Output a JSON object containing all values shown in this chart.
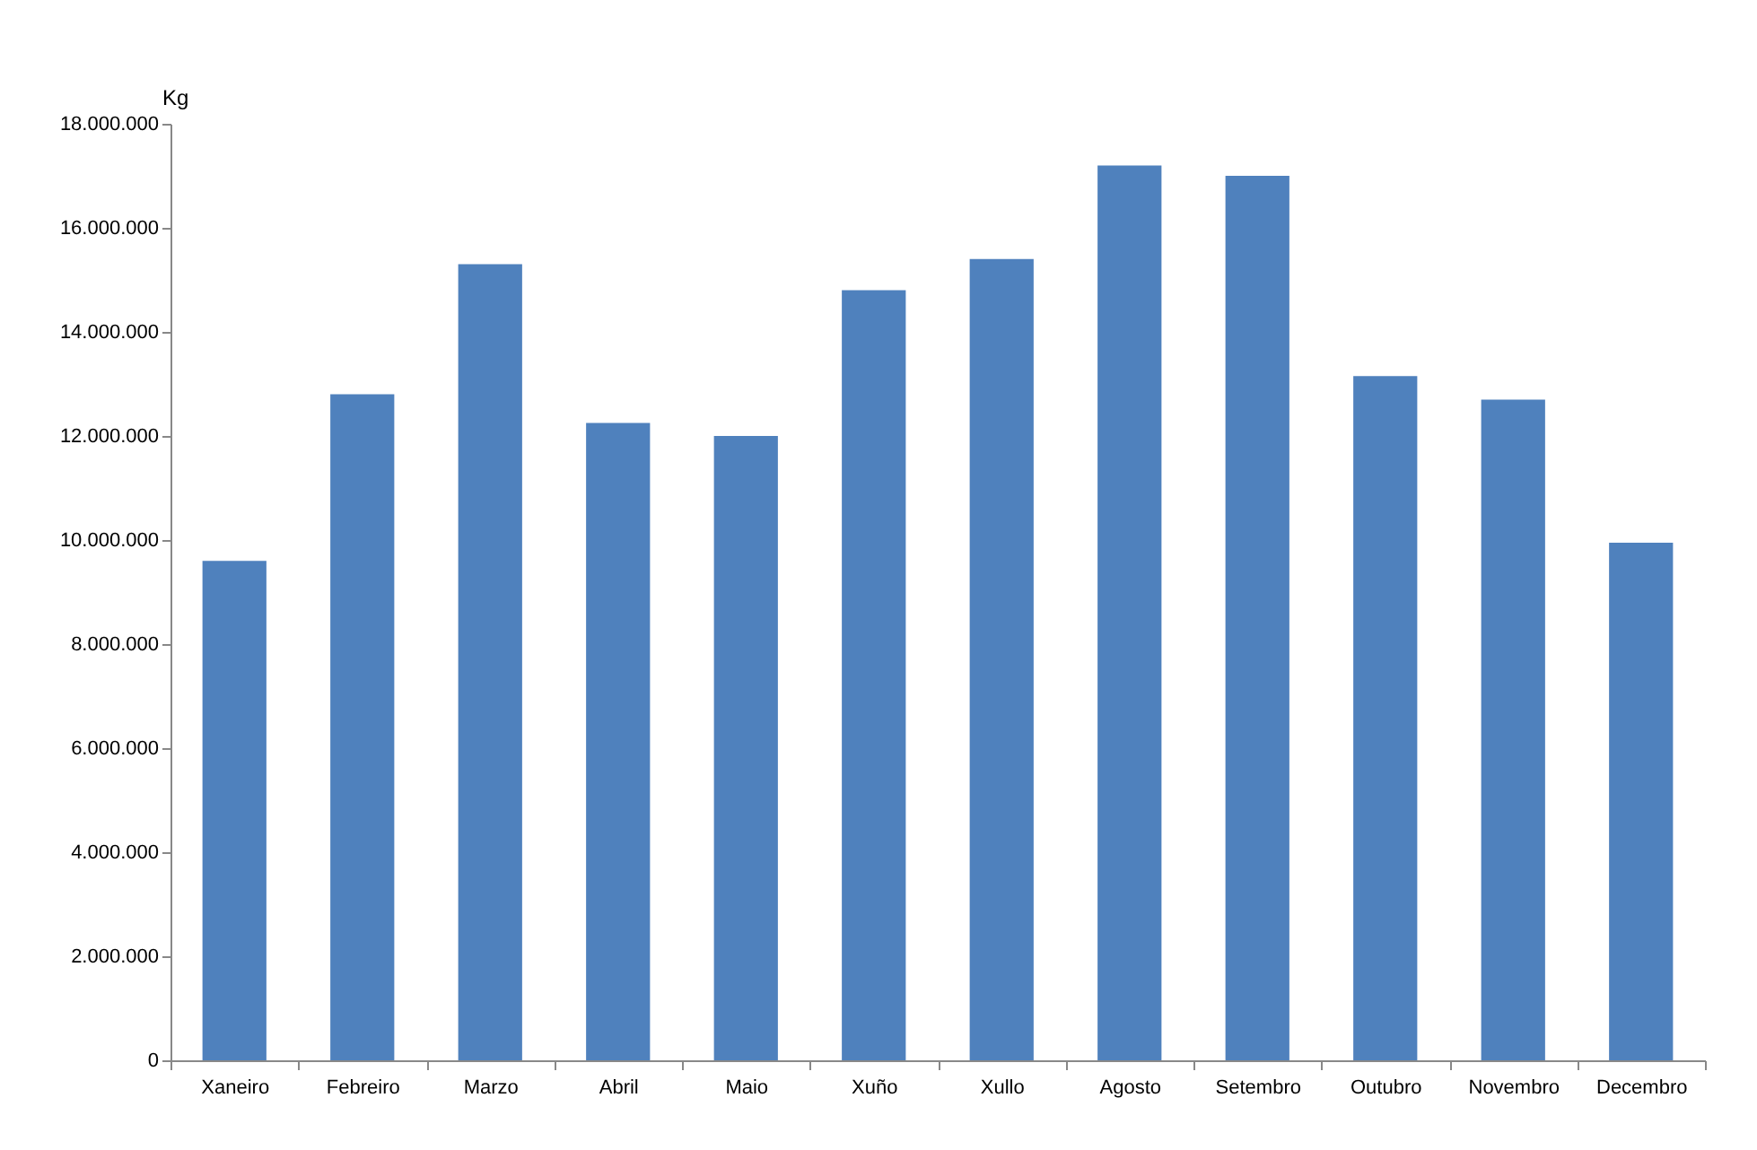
{
  "chart_data": {
    "type": "bar",
    "ylabel": "Kg",
    "categories": [
      "Xaneiro",
      "Febreiro",
      "Marzo",
      "Abril",
      "Maio",
      "Xuño",
      "Xullo",
      "Agosto",
      "Setembro",
      "Outubro",
      "Novembro",
      "Decembro"
    ],
    "values": [
      9600000,
      12800000,
      15300000,
      12250000,
      12000000,
      14800000,
      15400000,
      17200000,
      17000000,
      13150000,
      12700000,
      9950000
    ],
    "color": "#4f81bd",
    "ylim": [
      0,
      18000000
    ],
    "yticks": [
      0,
      {
        "value": 2000000,
        "label": "2.000.000"
      },
      {
        "value": 4000000,
        "label": "4.000.000"
      },
      {
        "value": 6000000,
        "label": "6.000.000"
      },
      {
        "value": 8000000,
        "label": "8.000.000"
      },
      {
        "value": 10000000,
        "label": "10.000.000"
      },
      {
        "value": 12000000,
        "label": "12.000.000"
      },
      {
        "value": 14000000,
        "label": "14.000.000"
      },
      {
        "value": 16000000,
        "label": "16.000.000"
      },
      {
        "value": 18000000,
        "label": "18.000.000"
      }
    ],
    "grid": false
  }
}
